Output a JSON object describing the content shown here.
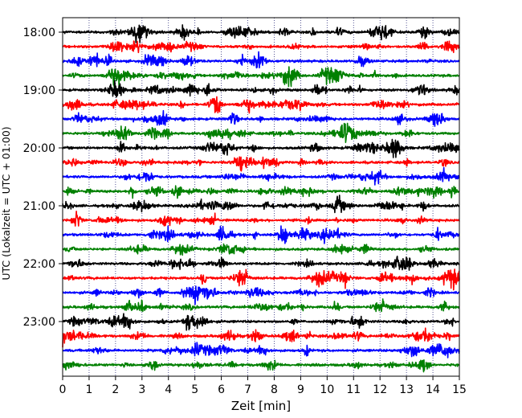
{
  "chart_data": {
    "type": "line",
    "title": "",
    "xlabel": "Zeit  [min]",
    "ylabel": "UTC (Lokalzeit = UTC + 01:00)",
    "xlim": [
      0,
      15
    ],
    "x_ticks": [
      "0",
      "1",
      "2",
      "3",
      "4",
      "5",
      "6",
      "7",
      "8",
      "9",
      "10",
      "11",
      "12",
      "13",
      "14",
      "15"
    ],
    "y_tick_labels": [
      "18:00",
      "19:00",
      "20:00",
      "21:00",
      "22:00",
      "23:00"
    ],
    "grid": "vertical dotted",
    "legend": "none",
    "line_colors": [
      "#000000",
      "#ff0000",
      "#0000ff",
      "#008000"
    ],
    "series": [
      {
        "start": "18:00",
        "end": "18:15",
        "color": "#000000"
      },
      {
        "start": "18:15",
        "end": "18:30",
        "color": "#ff0000"
      },
      {
        "start": "18:30",
        "end": "18:45",
        "color": "#0000ff"
      },
      {
        "start": "18:45",
        "end": "19:00",
        "color": "#008000"
      },
      {
        "start": "19:00",
        "end": "19:15",
        "color": "#000000"
      },
      {
        "start": "19:15",
        "end": "19:30",
        "color": "#ff0000"
      },
      {
        "start": "19:30",
        "end": "19:45",
        "color": "#0000ff"
      },
      {
        "start": "19:45",
        "end": "20:00",
        "color": "#008000"
      },
      {
        "start": "20:00",
        "end": "20:15",
        "color": "#000000"
      },
      {
        "start": "20:15",
        "end": "20:30",
        "color": "#ff0000"
      },
      {
        "start": "20:30",
        "end": "20:45",
        "color": "#0000ff"
      },
      {
        "start": "20:45",
        "end": "21:00",
        "color": "#008000"
      },
      {
        "start": "21:00",
        "end": "21:15",
        "color": "#000000"
      },
      {
        "start": "21:15",
        "end": "21:30",
        "color": "#ff0000"
      },
      {
        "start": "21:30",
        "end": "21:45",
        "color": "#0000ff"
      },
      {
        "start": "21:45",
        "end": "22:00",
        "color": "#008000"
      },
      {
        "start": "22:00",
        "end": "22:15",
        "color": "#000000"
      },
      {
        "start": "22:15",
        "end": "22:30",
        "color": "#ff0000"
      },
      {
        "start": "22:30",
        "end": "22:45",
        "color": "#0000ff"
      },
      {
        "start": "22:45",
        "end": "23:00",
        "color": "#008000"
      },
      {
        "start": "23:00",
        "end": "23:15",
        "color": "#000000"
      },
      {
        "start": "23:15",
        "end": "23:30",
        "color": "#ff0000"
      },
      {
        "start": "23:30",
        "end": "23:45",
        "color": "#0000ff"
      },
      {
        "start": "23:45",
        "end": "24:00",
        "color": "#008000"
      }
    ]
  }
}
